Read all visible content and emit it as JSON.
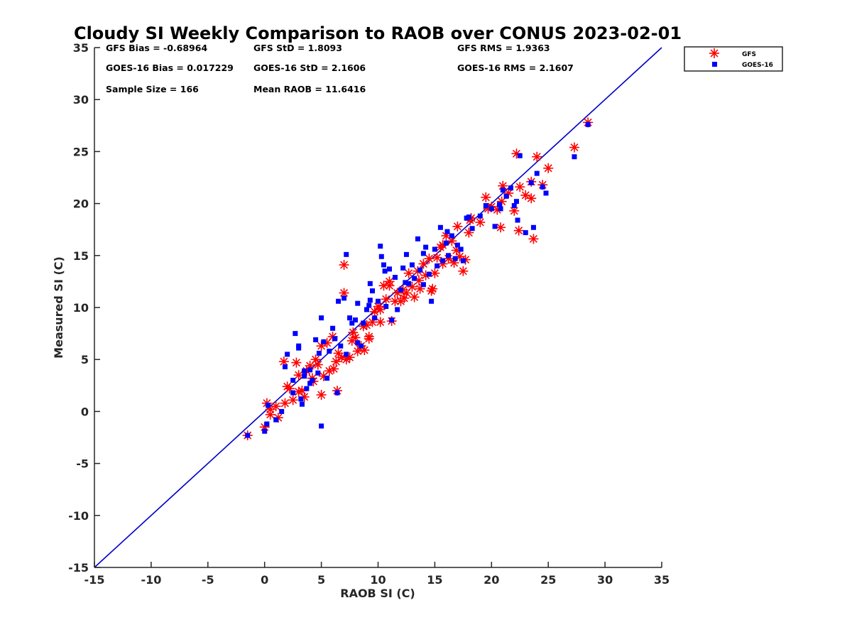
{
  "chart_data": {
    "type": "scatter",
    "title": "Cloudy SI Weekly Comparison to RAOB over CONUS 2023-02-01",
    "xlabel": "RAOB SI (C)",
    "ylabel": "Measured SI (C)",
    "xlim": [
      -15,
      35
    ],
    "ylim": [
      -15,
      35
    ],
    "x_ticks": [
      "-15",
      "-10",
      "-5",
      "0",
      "5",
      "10",
      "15",
      "20",
      "25",
      "30",
      "35"
    ],
    "y_ticks": [
      "-15",
      "-10",
      "-5",
      "0",
      "5",
      "10",
      "15",
      "20",
      "25",
      "30",
      "35"
    ],
    "grid": false,
    "legend_position": "outside top-right",
    "reference_line": {
      "x": [
        -15,
        35
      ],
      "y": [
        -15,
        35
      ],
      "color": "#0000cc"
    },
    "stats": {
      "gfs_bias": "GFS Bias = -0.68964",
      "gfs_std": "GFS StD = 1.8093",
      "gfs_rms": "GFS RMS = 1.9363",
      "goes_bias": "GOES-16 Bias = 0.017229",
      "goes_std": "GOES-16 StD = 2.1606",
      "goes_rms": "GOES-16 RMS = 2.1607",
      "sample_size": "Sample Size = 166",
      "mean_raob": "Mean RAOB = 11.6416"
    },
    "series": [
      {
        "name": "GFS",
        "marker": "asterisk",
        "color": "#ff0000",
        "x": [
          -1.5,
          0,
          0.2,
          0.5,
          1.2,
          1.8,
          2.0,
          1.7,
          2.5,
          2.8,
          3.0,
          3.3,
          3.5,
          3.7,
          4.0,
          4.2,
          4.5,
          4.7,
          5.0,
          5.2,
          5.5,
          5.7,
          6.0,
          6.3,
          6.5,
          6.8,
          7.0,
          7.2,
          7.0,
          7.5,
          7.7,
          8.0,
          8.2,
          8.5,
          8.7,
          9.0,
          9.2,
          9.5,
          9.7,
          10.0,
          10.2,
          10.5,
          10.7,
          11.0,
          11.2,
          11.5,
          11.7,
          12.0,
          12.2,
          12.5,
          12.7,
          13.0,
          13.2,
          13.5,
          13.7,
          14.0,
          14.2,
          14.5,
          14.7,
          15.0,
          15.2,
          15.5,
          15.7,
          16.0,
          16.2,
          16.5,
          16.7,
          17.0,
          17.2,
          17.5,
          17.7,
          18.0,
          18.2,
          19.0,
          19.5,
          19.7,
          20.0,
          20.5,
          20.8,
          21.0,
          21.5,
          22.0,
          22.2,
          22.5,
          23.0,
          23.5,
          23.7,
          24.0,
          24.5,
          25.0,
          27.3,
          28.5,
          0.5,
          1.0,
          2.2,
          3.0,
          4.3,
          5.0,
          6.1,
          6.4,
          7.8,
          8.8,
          9.2,
          10.2,
          11.0,
          12.3,
          13.6,
          14.8,
          15.7,
          16.9,
          18.1,
          20.9,
          22.4,
          23.5
        ],
        "y": [
          -2.3,
          -1.5,
          0.8,
          -0.3,
          -0.6,
          0.8,
          2.4,
          4.8,
          1.1,
          4.7,
          3.5,
          2.0,
          1.4,
          3.9,
          4.4,
          3.2,
          5.0,
          4.5,
          6.3,
          3.4,
          6.6,
          3.9,
          7.2,
          4.8,
          5.6,
          5.2,
          11.4,
          5.0,
          14.1,
          5.2,
          6.8,
          7.1,
          5.8,
          6.3,
          8.2,
          8.3,
          7.2,
          8.6,
          9.6,
          10.1,
          9.8,
          12.1,
          10.8,
          12.5,
          8.7,
          10.6,
          11.4,
          10.6,
          11.7,
          11.4,
          13.3,
          12.0,
          11.0,
          13.5,
          11.8,
          14.2,
          13.1,
          14.7,
          11.6,
          13.3,
          14.8,
          15.8,
          14.2,
          16.9,
          14.7,
          16.4,
          14.3,
          17.8,
          14.9,
          13.5,
          14.6,
          17.2,
          18.6,
          18.2,
          20.6,
          19.5,
          19.7,
          19.4,
          17.7,
          21.7,
          21.0,
          19.3,
          24.8,
          21.6,
          20.8,
          22.1,
          16.6,
          24.5,
          21.8,
          23.4,
          25.4,
          27.8,
          0.2,
          0.5,
          2.2,
          1.9,
          2.9,
          1.6,
          4.1,
          2.0,
          7.6,
          5.9,
          7.0,
          8.6,
          12.1,
          10.9,
          12.6,
          11.8,
          16.0,
          15.5,
          18.4,
          20.2,
          17.4,
          20.5
        ]
      },
      {
        "name": "GOES-16",
        "marker": "square",
        "color": "#0000ff",
        "x": [
          -1.5,
          0,
          0.2,
          0.3,
          1.0,
          1.5,
          1.8,
          2.0,
          2.5,
          2.7,
          3.0,
          3.2,
          3.3,
          3.5,
          3.7,
          4.0,
          4.2,
          4.5,
          4.7,
          4.8,
          5.0,
          5.2,
          5.5,
          5.7,
          6.0,
          6.2,
          6.5,
          6.7,
          7.0,
          7.2,
          7.5,
          7.7,
          8.0,
          8.2,
          8.5,
          8.7,
          9.0,
          9.2,
          9.3,
          9.5,
          9.7,
          10.0,
          10.2,
          10.5,
          10.7,
          11.0,
          11.2,
          11.5,
          11.7,
          12.0,
          12.2,
          12.5,
          12.7,
          13.0,
          13.2,
          13.5,
          13.7,
          14.0,
          14.2,
          14.5,
          14.7,
          15.0,
          15.2,
          15.5,
          15.7,
          16.0,
          16.2,
          16.5,
          16.8,
          17.0,
          17.3,
          17.5,
          18.0,
          18.3,
          19.0,
          19.5,
          20.0,
          20.3,
          20.7,
          21.0,
          21.3,
          21.7,
          22.0,
          22.3,
          22.5,
          23.0,
          23.5,
          23.7,
          24.0,
          24.5,
          24.8,
          27.3,
          28.5,
          3.5,
          4.0,
          6.4,
          5.0,
          3.0,
          2.5,
          8.2,
          9.3,
          10.3,
          12.4,
          14.0,
          16.1,
          17.8,
          20.8,
          22.2,
          7.2,
          10.6
        ],
        "y": [
          -2.3,
          -1.9,
          -1.2,
          0.6,
          -0.8,
          0.0,
          4.3,
          5.5,
          1.8,
          7.5,
          6.3,
          1.2,
          0.7,
          3.4,
          2.2,
          4.0,
          3.0,
          6.9,
          3.7,
          5.6,
          -1.4,
          6.7,
          3.2,
          5.8,
          8.0,
          7.0,
          10.6,
          6.3,
          10.9,
          5.5,
          9.0,
          8.5,
          8.8,
          10.4,
          6.3,
          8.5,
          9.8,
          10.2,
          12.3,
          11.6,
          9.0,
          10.6,
          15.9,
          14.1,
          10.1,
          13.7,
          8.8,
          12.9,
          9.8,
          11.7,
          13.8,
          15.1,
          12.3,
          14.1,
          12.8,
          16.6,
          13.6,
          12.2,
          15.8,
          13.2,
          10.6,
          15.6,
          14.0,
          17.7,
          14.5,
          16.2,
          15.0,
          16.9,
          14.7,
          16.0,
          15.6,
          14.5,
          18.7,
          17.6,
          18.8,
          19.8,
          19.5,
          17.8,
          19.9,
          21.3,
          20.7,
          21.5,
          19.8,
          18.4,
          24.6,
          17.2,
          22.0,
          17.7,
          22.9,
          21.6,
          21.0,
          24.5,
          27.6,
          3.9,
          2.7,
          1.8,
          9.0,
          6.1,
          3.0,
          6.6,
          10.7,
          14.9,
          12.4,
          15.2,
          17.3,
          18.6,
          19.5,
          20.2,
          15.1,
          13.5
        ]
      }
    ]
  }
}
